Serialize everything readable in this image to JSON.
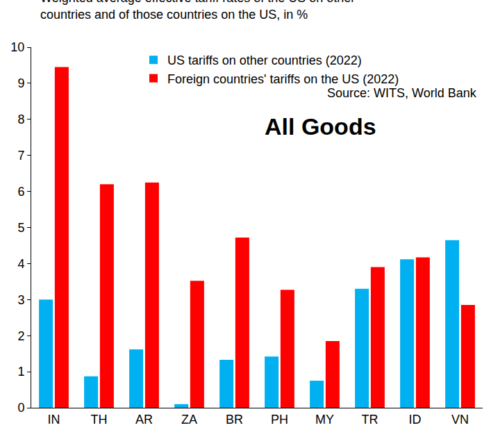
{
  "chart_data": {
    "type": "bar",
    "title": "Weighted average effective tariff rates of the US on other countries and of those countries on the US, in %",
    "categories": [
      "IN",
      "TH",
      "AR",
      "ZA",
      "BR",
      "PH",
      "MY",
      "TR",
      "ID",
      "VN"
    ],
    "series": [
      {
        "name": "US tariffs on other countries (2022)",
        "color": "#00B0F0",
        "values": [
          3.0,
          0.87,
          1.62,
          0.1,
          1.33,
          1.42,
          0.75,
          3.3,
          4.12,
          4.65
        ]
      },
      {
        "name": "Foreign countries' tariffs on the US (2022)",
        "color": "#FF0000",
        "values": [
          9.45,
          6.2,
          6.25,
          3.52,
          4.72,
          3.27,
          1.85,
          3.9,
          4.17,
          2.85
        ]
      }
    ],
    "annotations": [
      "Source: WITS, World Bank",
      "All Goods"
    ],
    "ylim": [
      0,
      10
    ],
    "yticks": [
      0,
      1,
      2,
      3,
      4,
      5,
      6,
      7,
      8,
      9,
      10
    ],
    "grid": false,
    "legend": "top"
  }
}
